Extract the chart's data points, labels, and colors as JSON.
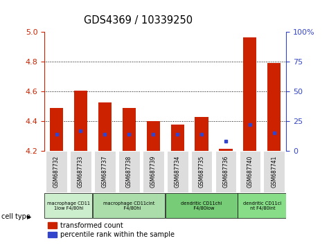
{
  "title": "GDS4369 / 10339250",
  "samples": [
    "GSM687732",
    "GSM687733",
    "GSM687737",
    "GSM687738",
    "GSM687739",
    "GSM687734",
    "GSM687735",
    "GSM687736",
    "GSM687740",
    "GSM687741"
  ],
  "red_values": [
    4.49,
    4.605,
    4.525,
    4.49,
    4.4,
    4.375,
    4.43,
    4.215,
    4.965,
    4.79
  ],
  "blue_percentiles": [
    14,
    17,
    14,
    14,
    14,
    14,
    14,
    8,
    22,
    15
  ],
  "ylim_left": [
    4.2,
    5.0
  ],
  "ylim_right": [
    0,
    100
  ],
  "yticks_left": [
    4.2,
    4.4,
    4.6,
    4.8,
    5.0
  ],
  "yticks_right": [
    0,
    25,
    50,
    75,
    100
  ],
  "ytick_labels_right": [
    "0",
    "25",
    "50",
    "75",
    "100%"
  ],
  "red_color": "#cc2200",
  "blue_color": "#3344cc",
  "bar_width": 0.55,
  "bg_color": "#ffffff",
  "cell_types": [
    {
      "label": "macrophage CD11\n1low F4/80hi",
      "start": 0,
      "end": 2,
      "color": "#cceecc"
    },
    {
      "label": "macrophage CD11cint\n    F4/80hi",
      "start": 2,
      "end": 5,
      "color": "#aaddaa"
    },
    {
      "label": "dendritic CD11chi\n   F4/80low",
      "start": 5,
      "end": 8,
      "color": "#77cc77"
    },
    {
      "label": "dendritic CD11ci\n nt F4/80int",
      "start": 8,
      "end": 10,
      "color": "#88dd88"
    }
  ],
  "legend_items": [
    {
      "label": "transformed count",
      "color": "#cc2200"
    },
    {
      "label": "percentile rank within the sample",
      "color": "#3344cc"
    }
  ]
}
